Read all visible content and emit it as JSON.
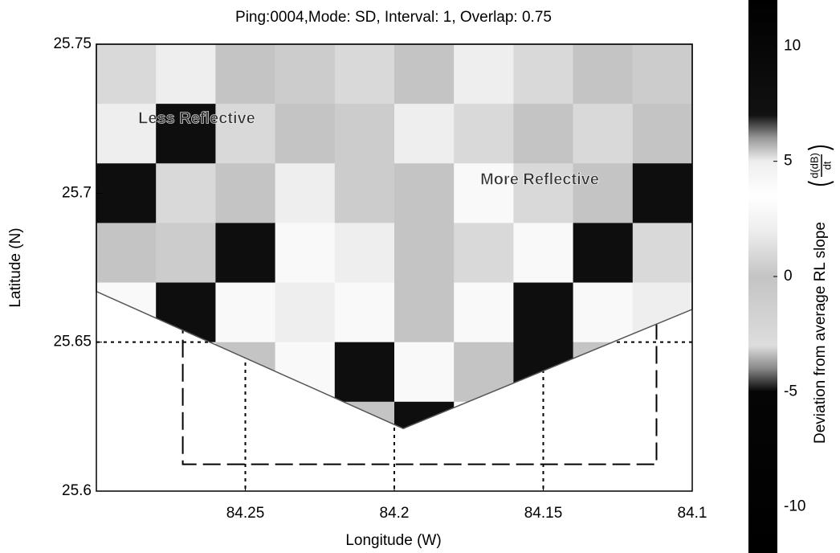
{
  "chart_data": {
    "type": "heatmap",
    "title": "Ping:0004,Mode: SD, Interval: 1, Overlap: 0.75",
    "x_label": "Longitude (W)",
    "y_label": "Latitude (N)",
    "xlim": [
      84.3,
      84.1
    ],
    "xticks": [
      84.25,
      84.2,
      84.15,
      84.1
    ],
    "ylim": [
      25.6,
      25.75
    ],
    "yticks": [
      25.6,
      25.65,
      25.7,
      25.75
    ],
    "x": [
      84.29,
      84.27,
      84.25,
      84.23,
      84.21,
      84.19,
      84.17,
      84.15,
      84.13,
      84.11
    ],
    "y": [
      25.74,
      25.72,
      25.7,
      25.68,
      25.66,
      25.64,
      25.62
    ],
    "z": [
      [
        1,
        2,
        0,
        -1,
        1,
        0,
        2,
        1,
        0,
        -1
      ],
      [
        2,
        8,
        1,
        0,
        -1,
        2,
        1,
        0,
        1,
        0
      ],
      [
        8,
        1,
        0,
        2,
        -1,
        0,
        4,
        1,
        0,
        8
      ],
      [
        0,
        -1,
        8,
        4,
        2,
        0,
        1,
        4,
        8,
        1
      ],
      [
        4,
        8,
        4,
        2,
        4,
        0,
        4,
        8,
        4,
        2
      ],
      [
        0,
        4,
        0,
        4,
        8,
        4,
        0,
        8,
        0,
        0
      ],
      [
        0,
        0,
        0,
        4,
        0,
        8,
        4,
        0,
        0,
        0
      ]
    ],
    "swath": {
      "x": [
        84.3,
        84.1,
        84.1,
        84.197,
        84.3
      ],
      "y": [
        25.75,
        25.75,
        25.661,
        25.621,
        25.667
      ]
    },
    "reference_lines": {
      "x": [
        84.25,
        84.2,
        84.15
      ],
      "y": [
        25.65
      ]
    },
    "box": {
      "x": [
        84.271,
        84.112
      ],
      "y": [
        25.609,
        25.7
      ]
    },
    "colorbar": {
      "label": "Deviation from average RL slope",
      "unit_numerator": "d(dB)",
      "unit_denominator": "dt",
      "clim": [
        -12,
        12
      ],
      "ticks": [
        10,
        5,
        0,
        -5,
        -10
      ]
    },
    "colormap": [
      {
        "value": -12,
        "color": "#000000"
      },
      {
        "value": -5,
        "color": "#050505"
      },
      {
        "value": -4,
        "color": "#888888"
      },
      {
        "value": -3,
        "color": "#dddddd"
      },
      {
        "value": 0,
        "color": "#c4c4c4"
      },
      {
        "value": 2,
        "color": "#eeeeee"
      },
      {
        "value": 3.5,
        "color": "#ffffff"
      },
      {
        "value": 5,
        "color": "#eeeeee"
      },
      {
        "value": 6,
        "color": "#999999"
      },
      {
        "value": 7,
        "color": "#111111"
      },
      {
        "value": 12,
        "color": "#000000"
      }
    ],
    "annotations": [
      "Less Reflective",
      "More Reflective"
    ]
  }
}
